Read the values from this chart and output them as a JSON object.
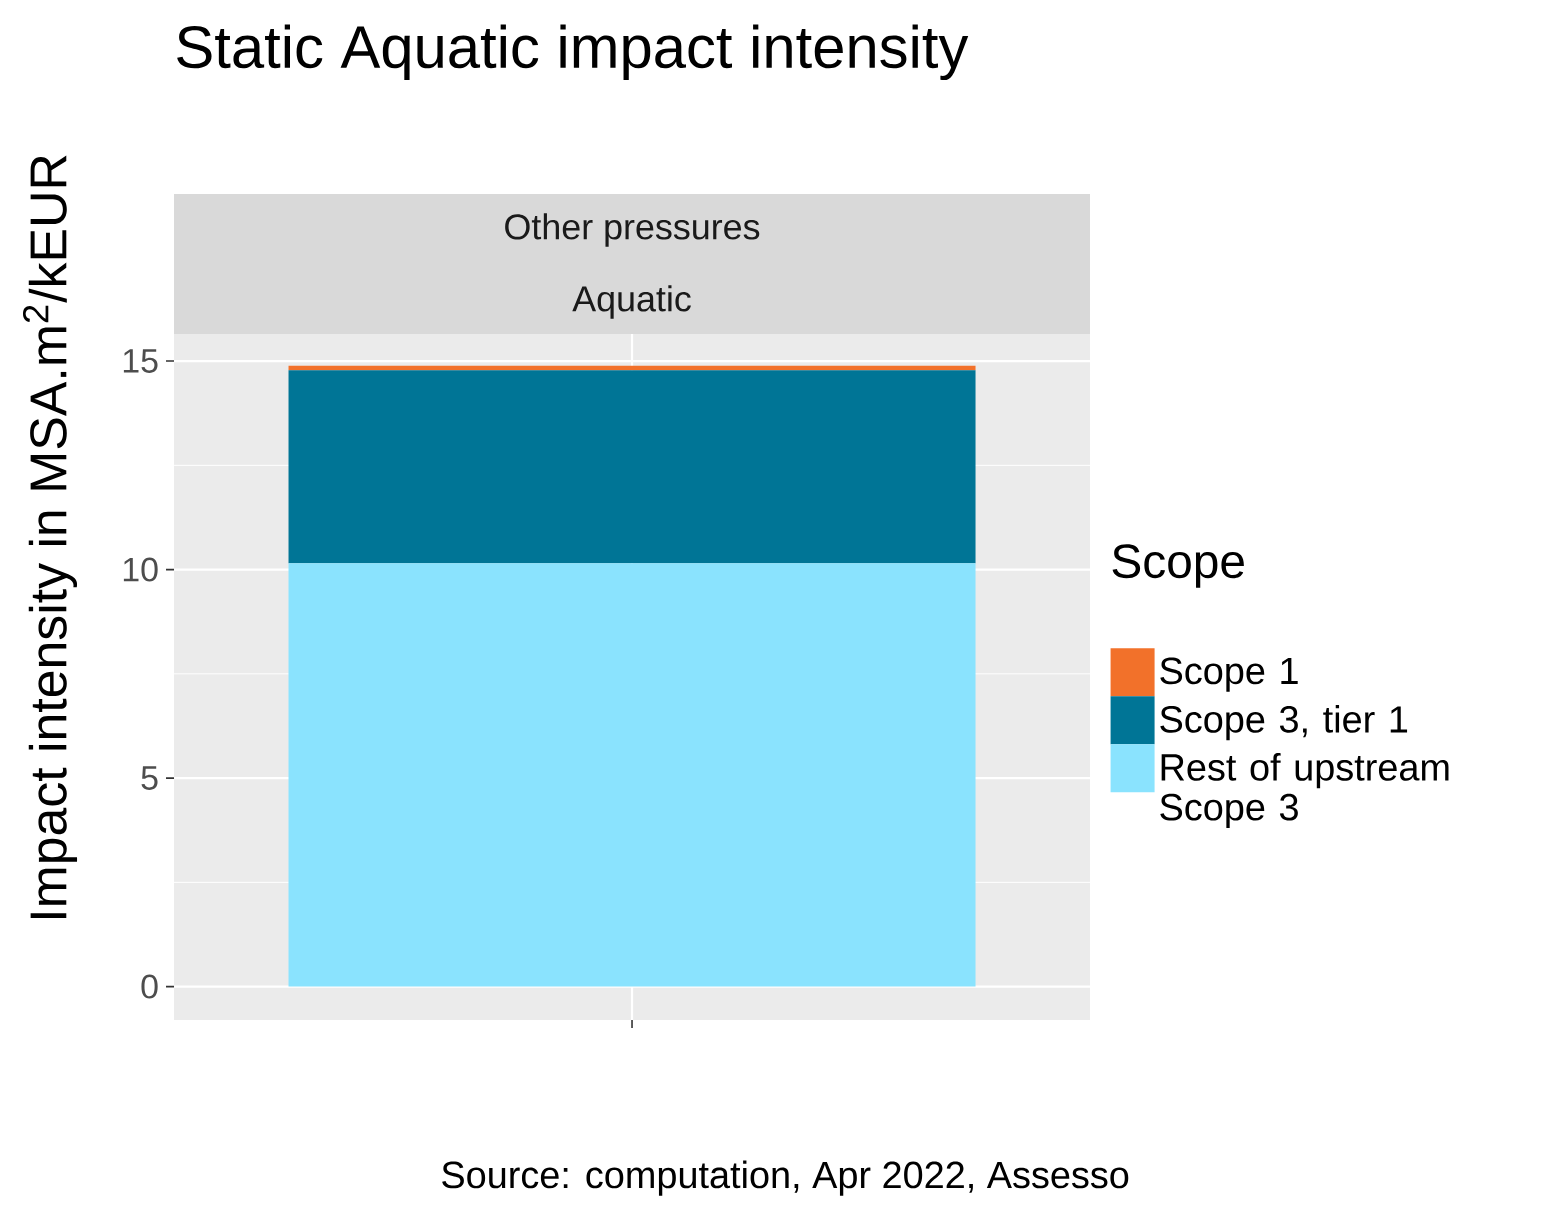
{
  "chart_data": {
    "type": "bar",
    "title": "Static Aquatic impact intensity",
    "ylabel": "Impact intensity in MSA.m$^{2}$/kEUR",
    "legend_title": "Scope",
    "annotations": [
      "Other pressures",
      "Aquatic",
      "Source: computation, Apr 2022, Assesso"
    ],
    "categories": [
      null
    ],
    "series": [
      {
        "name": "Rest of upstream Scope 3",
        "color": "#8ae3fe",
        "values": [
          10.15
        ]
      },
      {
        "name": "Scope 3, tier 1",
        "color": "#007596",
        "values": [
          4.63
        ]
      },
      {
        "name": "Scope 1",
        "color": "#f2712a",
        "values": [
          0.11
        ]
      }
    ],
    "stacked": true,
    "ylim": [
      -0.8,
      15.65
    ],
    "yticks": [
      0,
      5,
      10,
      15
    ],
    "grid": true,
    "legend": "right"
  }
}
